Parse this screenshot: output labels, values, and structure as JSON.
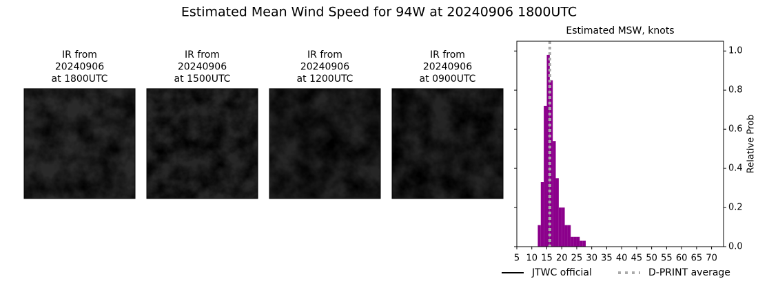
{
  "title": "Estimated Mean Wind Speed for 94W at 20240906 1800UTC",
  "panels": [
    {
      "lines": [
        "IR from",
        "20240906",
        "at 1800UTC"
      ]
    },
    {
      "lines": [
        "IR from",
        "20240906",
        "at 1500UTC"
      ]
    },
    {
      "lines": [
        "IR from",
        "20240906",
        "at 1200UTC"
      ]
    },
    {
      "lines": [
        "IR from",
        "20240906",
        "at 0900UTC"
      ]
    }
  ],
  "chart_data": {
    "type": "histogram",
    "title": "Estimated MSW, knots",
    "ylabel": "Relative Prob",
    "color": "#8b008b",
    "bins": [
      12,
      13,
      14,
      15,
      16,
      17,
      18,
      19,
      20,
      21,
      22,
      23,
      24,
      25,
      26,
      27,
      28
    ],
    "values": [
      0.11,
      0.33,
      0.72,
      0.98,
      0.85,
      0.54,
      0.35,
      0.2,
      0.2,
      0.11,
      0.11,
      0.05,
      0.05,
      0.05,
      0.03,
      0.03
    ],
    "xlim": [
      5,
      74
    ],
    "xticks": [
      5,
      10,
      15,
      20,
      25,
      30,
      35,
      40,
      45,
      50,
      55,
      60,
      65,
      70
    ],
    "ylim": [
      0,
      1.05
    ],
    "yticks": [
      {
        "value": 0,
        "label": "0.0"
      },
      {
        "value": 0.2,
        "label": "0.2"
      },
      {
        "value": 0.4,
        "label": "0.4"
      },
      {
        "value": 0.6,
        "label": "0.6"
      },
      {
        "value": 0.8,
        "label": "0.8"
      },
      {
        "value": 1,
        "label": "1.0"
      }
    ],
    "dprint_average": 16,
    "legend": [
      {
        "name": "JTWC official",
        "color": "#000000",
        "style": "solid"
      },
      {
        "name": "D-PRINT average",
        "color": "#aaaaaa",
        "style": "dotted"
      }
    ]
  }
}
